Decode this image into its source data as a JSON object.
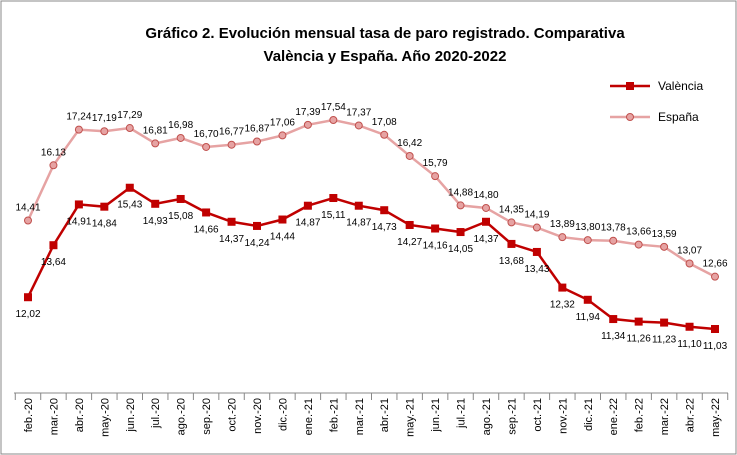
{
  "chart_data": {
    "type": "line",
    "title": [
      "Gráfico 2. Evolución mensual tasa de paro registrado. Comparativa",
      "València y España. Año 2020-2022"
    ],
    "categories": [
      "feb.-20",
      "mar.-20",
      "abr.-20",
      "may.-20",
      "jun.-20",
      "jul.-20",
      "ago.-20",
      "sep.-20",
      "oct.-20",
      "nov.-20",
      "dic.-20",
      "ene.-21",
      "feb.-21",
      "mar.-21",
      "abr.-21",
      "may.-21",
      "jun.-21",
      "jul.-21",
      "ago.-21",
      "sep.-21",
      "oct.-21",
      "nov.-21",
      "dic.-21",
      "ene.-22",
      "feb.-22",
      "mar.-22",
      "abr.-22",
      "may.-22"
    ],
    "legend": "right",
    "series": [
      {
        "name": "València",
        "color": "#c00000",
        "marker": "square",
        "values": [
          12.02,
          13.64,
          14.91,
          14.84,
          15.43,
          14.93,
          15.08,
          14.66,
          14.37,
          14.24,
          14.44,
          14.87,
          15.11,
          14.87,
          14.73,
          14.27,
          14.16,
          14.05,
          14.37,
          13.68,
          13.43,
          12.32,
          11.94,
          11.34,
          11.26,
          11.23,
          11.1,
          11.03
        ],
        "value_labels": [
          "12,02",
          "13,64",
          "14,91",
          "14,84",
          "15,43",
          "14,93",
          "15,08",
          "14,66",
          "14,37",
          "14,24",
          "14,44",
          "14,87",
          "15,11",
          "14,87",
          "14,73",
          "14,27",
          "14,16",
          "14,05",
          "14,37",
          "13,68",
          "13,43",
          "12,32",
          "11,94",
          "11,34",
          "11,26",
          "11,23",
          "11,10",
          "11,03"
        ]
      },
      {
        "name": "España",
        "color": "#e6a3a3",
        "marker": "circle",
        "values": [
          14.41,
          16.13,
          17.24,
          17.19,
          17.29,
          16.81,
          16.98,
          16.7,
          16.77,
          16.87,
          17.06,
          17.39,
          17.54,
          17.37,
          17.08,
          16.42,
          15.79,
          14.88,
          14.8,
          14.35,
          14.19,
          13.89,
          13.8,
          13.78,
          13.66,
          13.59,
          13.07,
          12.66
        ],
        "value_labels": [
          "14,41",
          "16.13",
          "17,24",
          "17,19",
          "17,29",
          "16,81",
          "16,98",
          "16,70",
          "16,77",
          "16,87",
          "17,06",
          "17,39",
          "17,54",
          "17,37",
          "17,08",
          "16,42",
          "15,79",
          "14,88",
          "14,80",
          "14,35",
          "14,19",
          "13,89",
          "13,80",
          "13,78",
          "13,66",
          "13,59",
          "13,07",
          "12,66"
        ]
      }
    ]
  }
}
